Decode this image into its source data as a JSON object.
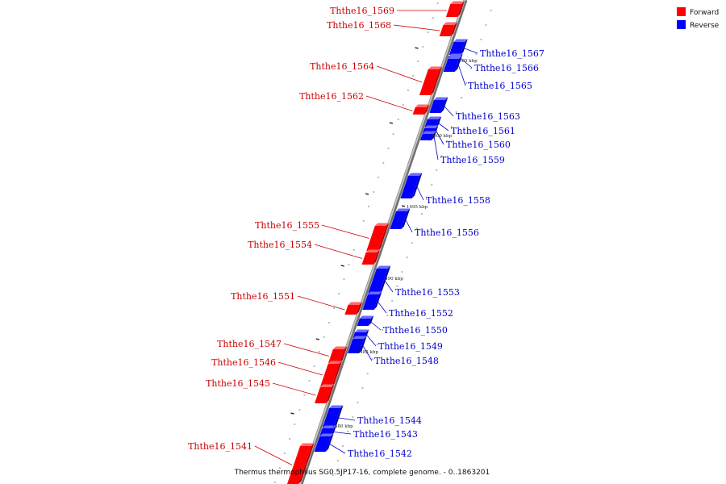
{
  "legend": {
    "forward": "Forward",
    "reverse": "Reverse"
  },
  "colors": {
    "forward": "#ff0000",
    "forward_dark": "#b80000",
    "forward_light": "#ff6b6b",
    "reverse": "#0000ff",
    "reverse_dark": "#0000a8",
    "reverse_light": "#6b6bff",
    "axis": "#999999",
    "label_forward": "#cc0000",
    "label_reverse": "#0000cc"
  },
  "caption": "Thermus thermophilus SG0.5JP17-16, complete genome. - 0..1863201",
  "genes": [
    {
      "name": "Ththe16_1569",
      "strand": "forward"
    },
    {
      "name": "Ththe16_1568",
      "strand": "forward"
    },
    {
      "name": "Ththe16_1567",
      "strand": "reverse"
    },
    {
      "name": "Ththe16_1566",
      "strand": "reverse"
    },
    {
      "name": "Ththe16_1565",
      "strand": "reverse"
    },
    {
      "name": "Ththe16_1564",
      "strand": "forward"
    },
    {
      "name": "Ththe16_1563",
      "strand": "reverse"
    },
    {
      "name": "Ththe16_1562",
      "strand": "forward"
    },
    {
      "name": "Ththe16_1561",
      "strand": "reverse"
    },
    {
      "name": "Ththe16_1560",
      "strand": "reverse"
    },
    {
      "name": "Ththe16_1559",
      "strand": "reverse"
    },
    {
      "name": "Ththe16_1558",
      "strand": "reverse"
    },
    {
      "name": "Ththe16_1556",
      "strand": "reverse"
    },
    {
      "name": "Ththe16_1555",
      "strand": "forward"
    },
    {
      "name": "Ththe16_1554",
      "strand": "forward"
    },
    {
      "name": "Ththe16_1553",
      "strand": "reverse"
    },
    {
      "name": "Ththe16_1552",
      "strand": "reverse"
    },
    {
      "name": "Ththe16_1551",
      "strand": "forward"
    },
    {
      "name": "Ththe16_1550",
      "strand": "reverse"
    },
    {
      "name": "Ththe16_1549",
      "strand": "reverse"
    },
    {
      "name": "Ththe16_1548",
      "strand": "reverse"
    },
    {
      "name": "Ththe16_1547",
      "strand": "forward"
    },
    {
      "name": "Ththe16_1546",
      "strand": "forward"
    },
    {
      "name": "Ththe16_1545",
      "strand": "forward"
    },
    {
      "name": "Ththe16_1544",
      "strand": "reverse"
    },
    {
      "name": "Ththe16_1543",
      "strand": "reverse"
    },
    {
      "name": "Ththe16_1542",
      "strand": "reverse"
    },
    {
      "name": "Ththe16_1541",
      "strand": "forward"
    }
  ],
  "ticks": [
    "1505 kbp",
    "1500 kbp",
    "1495 kbp",
    "1490 kbp",
    "1485 kbp",
    "1480 kbp"
  ]
}
